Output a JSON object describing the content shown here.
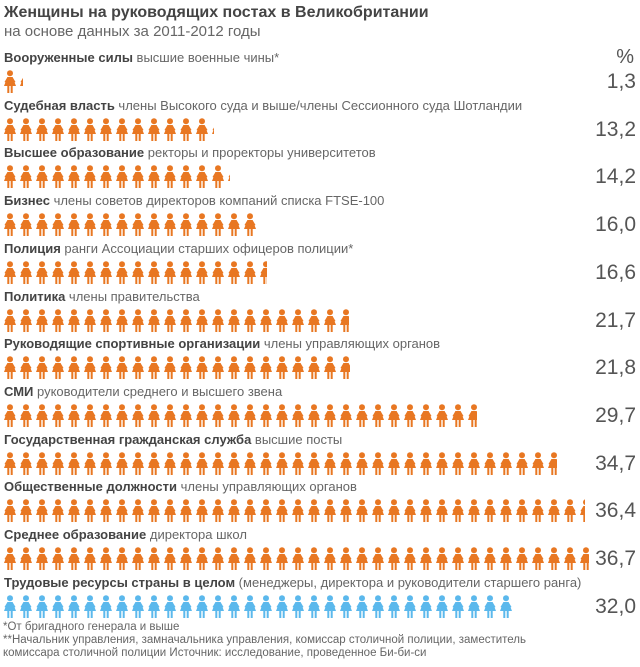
{
  "title": "Женщины на руководящих постах в Великобритании",
  "subtitle": "на основе данных за 2011-2012 годы",
  "percent_header": "%",
  "colors": {
    "orange": "#e87722",
    "blue": "#5bb8ec"
  },
  "chart_data": {
    "type": "pictogram",
    "unit": "1 icon = 1%",
    "rows": [
      {
        "bold": "Вооруженные силы",
        "rest": " высшие военные чины*",
        "value": 1.3,
        "label": "1,3",
        "color": "orange"
      },
      {
        "bold": "Судебная власть",
        "rest": " члены Высокого суда и выше/члены Сессионного суда Шотландии",
        "value": 13.2,
        "label": "13,2",
        "color": "orange"
      },
      {
        "bold": "Высшее образование",
        "rest": " ректоры и проректоры университетов",
        "value": 14.2,
        "label": "14,2",
        "color": "orange"
      },
      {
        "bold": "Бизнес",
        "rest": " члены советов директоров компаний списка FTSE-100",
        "value": 16.0,
        "label": "16,0",
        "color": "orange"
      },
      {
        "bold": "Полиция",
        "rest": " ранги Ассоциации старших офицеров полиции*",
        "value": 16.6,
        "label": "16,6",
        "color": "orange"
      },
      {
        "bold": "Политика",
        "rest": " члены правительства",
        "value": 21.7,
        "label": "21,7",
        "color": "orange"
      },
      {
        "bold": "Руководящие спортивные организации",
        "rest": " члены управляющих органов",
        "value": 21.8,
        "label": "21,8",
        "color": "orange"
      },
      {
        "bold": "СМИ",
        "rest": " руководители среднего и высшего звена",
        "value": 29.7,
        "label": "29,7",
        "color": "orange"
      },
      {
        "bold": "Государственная гражданская служба",
        "rest": " высшие посты",
        "value": 34.7,
        "label": "34,7",
        "color": "orange"
      },
      {
        "bold": "Общественные должности",
        "rest": " члены управляющих органов",
        "value": 36.4,
        "label": "36,4",
        "color": "orange"
      },
      {
        "bold": "Среднее образование",
        "rest": " директора школ",
        "value": 36.7,
        "label": "36,7",
        "color": "orange"
      },
      {
        "bold": "Трудовые ресурсы страны в целом",
        "rest": " (менеджеры, директора и руководители старшего ранга)",
        "value": 32.0,
        "label": "32,0",
        "color": "blue"
      }
    ]
  },
  "notes": [
    "*От бригадного генерала и выше",
    "**Начальник управления, замначальника управления, комиссар столичной полиции, заместитель",
    "комиссара столичной полиции Источник: исследование, проведенное Би-би-си"
  ]
}
